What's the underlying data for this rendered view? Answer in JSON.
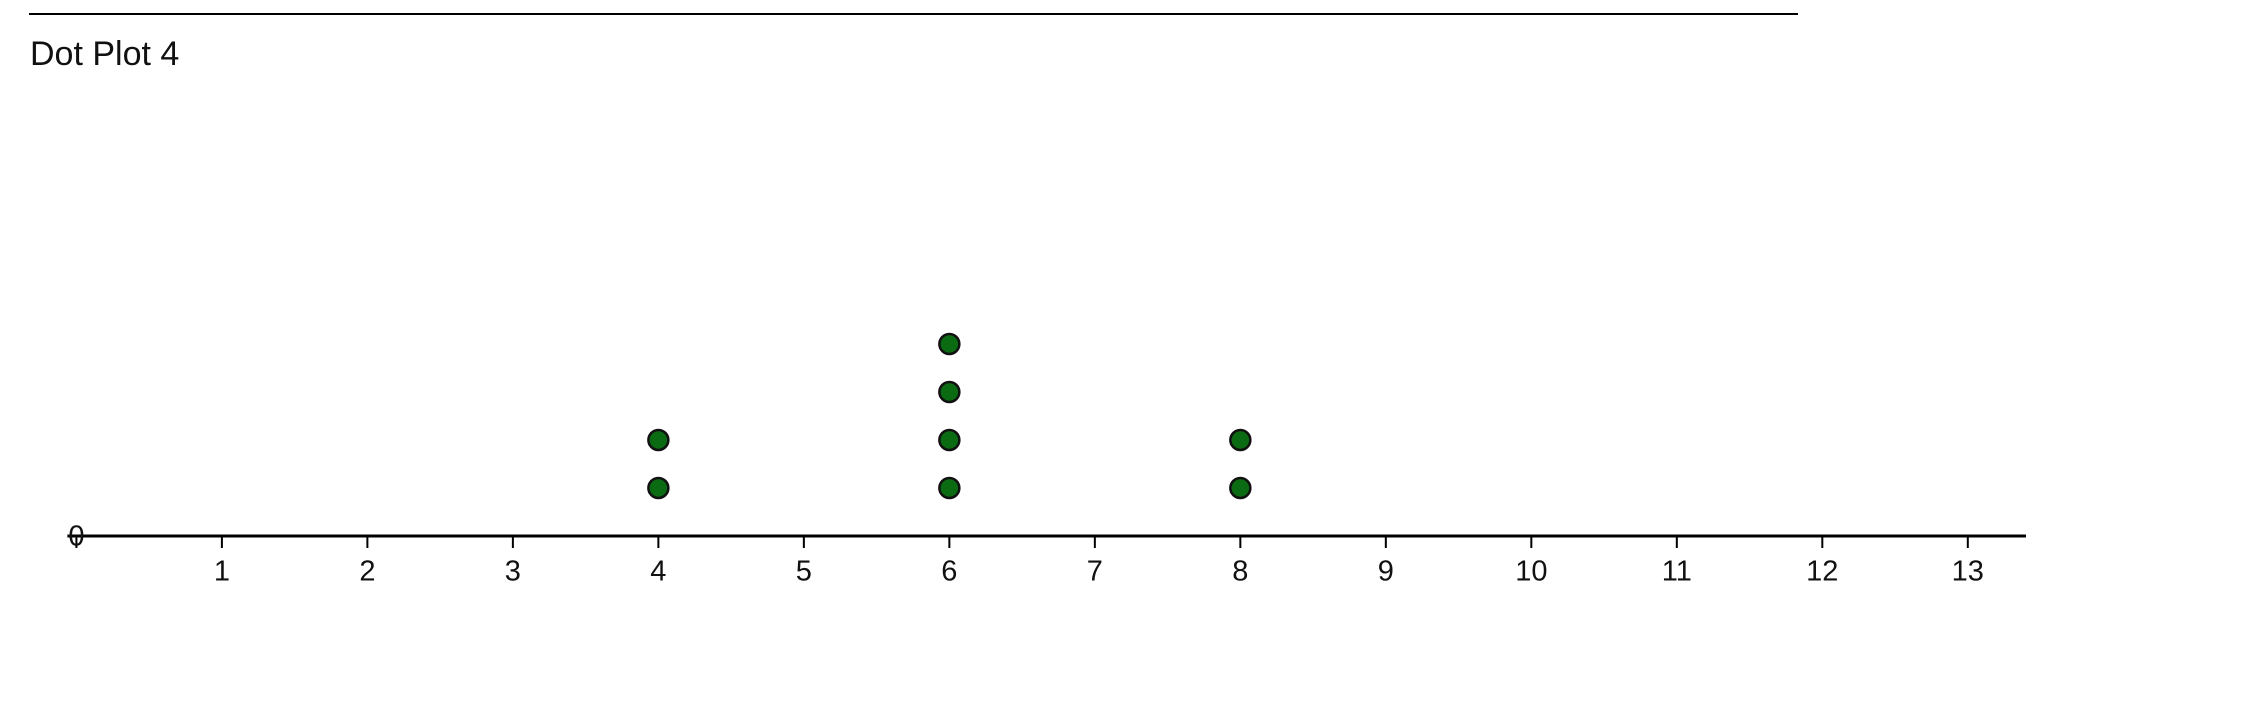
{
  "chart_data": {
    "type": "dot",
    "title": "Dot Plot 4",
    "x": [
      4,
      6,
      8
    ],
    "values": [
      2,
      4,
      2
    ],
    "color": "#0b6b12",
    "xlim": [
      0,
      13.4
    ],
    "xticks": [
      0,
      1,
      2,
      3,
      4,
      5,
      6,
      7,
      8,
      9,
      10,
      11,
      12,
      13
    ]
  }
}
